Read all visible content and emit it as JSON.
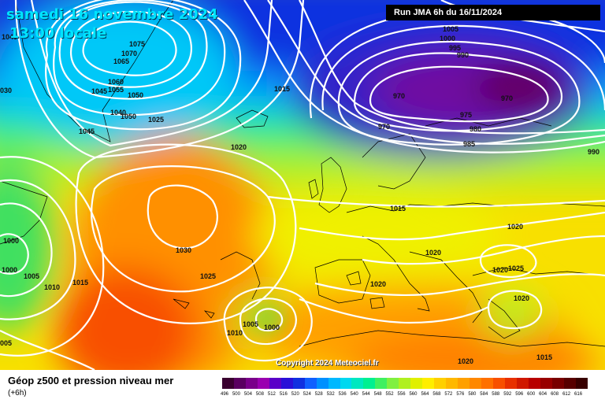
{
  "header": {
    "date": "samedi 16 novembre 2024",
    "time": "13:00 locale",
    "run": "Run JMA 6h du 16/11/2024"
  },
  "copyright": "Copyright 2024 Meteociel.fr",
  "legend": {
    "title": "Géop z500 et pression niveau mer",
    "subtitle": "(+6h)",
    "scale_values": [
      "496",
      "500",
      "504",
      "508",
      "512",
      "516",
      "520",
      "524",
      "528",
      "532",
      "536",
      "540",
      "544",
      "548",
      "552",
      "556",
      "560",
      "564",
      "568",
      "572",
      "576",
      "580",
      "584",
      "588",
      "592",
      "596",
      "600",
      "604",
      "608",
      "612",
      "616"
    ],
    "scale_colors": [
      "#3a0030",
      "#5a0060",
      "#7a008a",
      "#9a00b0",
      "#5a00c8",
      "#2a10d8",
      "#1030e0",
      "#1060ff",
      "#0090ff",
      "#00b8ff",
      "#00d8f0",
      "#00e8c0",
      "#00f090",
      "#40f060",
      "#80f040",
      "#b0f020",
      "#e0f000",
      "#ffee00",
      "#ffd000",
      "#ffb800",
      "#ffa000",
      "#ff8800",
      "#ff7000",
      "#f85000",
      "#e83000",
      "#d01800",
      "#b80000",
      "#980000",
      "#780000",
      "#580000",
      "#380000"
    ]
  },
  "map": {
    "isobar_labels": [
      {
        "text": "1045"
      },
      {
        "text": "1075"
      },
      {
        "text": "1070"
      },
      {
        "text": "1065"
      },
      {
        "text": "1060"
      },
      {
        "text": "1055"
      },
      {
        "text": "1045"
      },
      {
        "text": "1050"
      },
      {
        "text": "1040"
      },
      {
        "text": "1050"
      },
      {
        "text": "1025"
      },
      {
        "text": "1045"
      },
      {
        "text": "030"
      },
      {
        "text": "1015"
      },
      {
        "text": "1020"
      },
      {
        "text": "1005"
      },
      {
        "text": "1000"
      },
      {
        "text": "995"
      },
      {
        "text": "990"
      },
      {
        "text": "970"
      },
      {
        "text": "970"
      },
      {
        "text": "975"
      },
      {
        "text": "980"
      },
      {
        "text": "970"
      },
      {
        "text": "985"
      },
      {
        "text": "990"
      },
      {
        "text": "1015"
      },
      {
        "text": "1020"
      },
      {
        "text": "1030"
      },
      {
        "text": "1025"
      },
      {
        "text": "1020"
      },
      {
        "text": "1020"
      },
      {
        "text": "1020"
      },
      {
        "text": "1025"
      },
      {
        "text": "1020"
      },
      {
        "text": "1000"
      },
      {
        "text": "1005"
      },
      {
        "text": "1010"
      },
      {
        "text": "1015"
      },
      {
        "text": "1000"
      },
      {
        "text": "1005"
      },
      {
        "text": "1000"
      },
      {
        "text": "1010"
      },
      {
        "text": "005"
      },
      {
        "text": "1015"
      },
      {
        "text": "1020"
      }
    ]
  }
}
